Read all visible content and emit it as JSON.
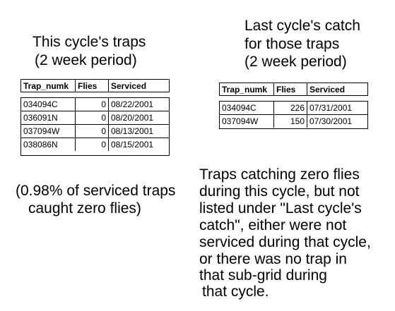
{
  "left_heading": {
    "line1": "This cycle's traps",
    "line2": "(2 week period)"
  },
  "right_heading": {
    "line1": "Last cycle's catch",
    "line2": "for those traps",
    "line3": "(2 week period)"
  },
  "table_left": {
    "headers": [
      "Trap_numk",
      "Flies",
      "Serviced"
    ],
    "rows": [
      [
        "034094C",
        "0",
        "08/22/2001"
      ],
      [
        "036091N",
        "0",
        "08/20/2001"
      ],
      [
        "037094W",
        "0",
        "08/13/2001"
      ],
      [
        "038086N",
        "0",
        "08/15/2001"
      ]
    ]
  },
  "table_right": {
    "headers": [
      "Trap_numk",
      "Flies",
      "Serviced"
    ],
    "rows": [
      [
        "034094C",
        "226",
        "07/31/2001"
      ],
      [
        "037094W",
        "150",
        "07/30/2001"
      ]
    ]
  },
  "note_left": {
    "line1": "(0.98% of serviced traps",
    "line2": "caught zero flies)"
  },
  "note_right": {
    "lines": [
      "Traps catching zero flies",
      "during this cycle, but not",
      "listed under \"Last cycle's",
      "catch\", either were not",
      "serviced during that cycle,",
      "or there was no trap in",
      "that sub-grid during",
      "that cycle."
    ]
  }
}
